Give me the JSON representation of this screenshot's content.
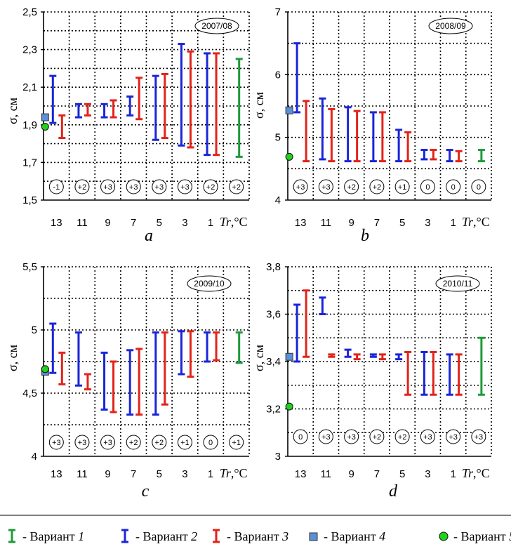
{
  "figure": {
    "x_categories": [
      "13",
      "11",
      "9",
      "7",
      "5",
      "3",
      "1"
    ],
    "x_axis_label_italic": "Tr",
    "x_axis_label_unit": ",°C",
    "y_axis_label": "σ, см"
  },
  "colors": {
    "variant_1": "#1f9a3a",
    "variant_2": "#1a25d8",
    "variant_3": "#e2231a",
    "variant_4": "#5b8fd6",
    "variant_5": "#22d11a",
    "grid": "#000000"
  },
  "chart_data": [
    {
      "type": "range-bar",
      "panel_letter": "a",
      "season": "2007/08",
      "ylim": [
        1.5,
        2.5
      ],
      "y_ticks": [
        "1,5",
        "1,7",
        "1,9",
        "2,1",
        "2,3",
        "2,5"
      ],
      "x_categories": [
        "13",
        "11",
        "9",
        "7",
        "5",
        "3",
        "1"
      ],
      "badges": [
        "-1",
        "+2",
        "+3",
        "+3",
        "+3",
        "+3",
        "+2",
        "+2"
      ],
      "variant_4_point": 1.94,
      "variant_5_point": 1.89,
      "variant_2": [
        [
          1.91,
          2.16
        ],
        [
          1.94,
          2.01
        ],
        [
          1.94,
          2.01
        ],
        [
          1.95,
          2.05
        ],
        [
          1.82,
          2.16
        ],
        [
          1.79,
          2.33
        ],
        [
          1.74,
          2.28
        ]
      ],
      "variant_3": [
        [
          1.83,
          1.95
        ],
        [
          1.95,
          2.01
        ],
        [
          1.94,
          2.03
        ],
        [
          1.93,
          2.15
        ],
        [
          1.83,
          2.17
        ],
        [
          1.78,
          2.29
        ],
        [
          1.74,
          2.28
        ]
      ],
      "variant_1_range": [
        1.73,
        2.25
      ]
    },
    {
      "type": "range-bar",
      "panel_letter": "b",
      "season": "2008/09",
      "ylim": [
        4,
        7
      ],
      "y_ticks": [
        "4",
        "5",
        "6",
        "7"
      ],
      "x_categories": [
        "13",
        "11",
        "9",
        "7",
        "5",
        "3",
        "1"
      ],
      "badges": [
        "+3",
        "+3",
        "+2",
        "+2",
        "+1",
        "0",
        "0",
        "0"
      ],
      "variant_4_point": 5.43,
      "variant_5_point": 4.69,
      "variant_2": [
        [
          5.4,
          6.5
        ],
        [
          4.65,
          5.62
        ],
        [
          4.62,
          5.48
        ],
        [
          4.62,
          5.4
        ],
        [
          4.62,
          5.12
        ],
        [
          4.65,
          4.8
        ],
        [
          4.62,
          4.8
        ]
      ],
      "variant_3": [
        [
          4.62,
          5.58
        ],
        [
          4.62,
          5.45
        ],
        [
          4.62,
          5.42
        ],
        [
          4.62,
          5.4
        ],
        [
          4.62,
          5.08
        ],
        [
          4.65,
          4.8
        ],
        [
          4.62,
          4.78
        ]
      ],
      "variant_1_range": [
        4.62,
        4.8
      ]
    },
    {
      "type": "range-bar",
      "panel_letter": "c",
      "season": "2009/10",
      "ylim": [
        4,
        5.5
      ],
      "y_ticks": [
        "4",
        "4,5",
        "5",
        "5,5"
      ],
      "x_categories": [
        "13",
        "11",
        "9",
        "7",
        "5",
        "3",
        "1"
      ],
      "badges": [
        "+3",
        "+3",
        "+3",
        "+2",
        "+2",
        "+1",
        "0",
        "+1"
      ],
      "variant_4_point": 4.67,
      "variant_5_point": 4.69,
      "variant_2": [
        [
          4.66,
          5.05
        ],
        [
          4.56,
          4.98
        ],
        [
          4.37,
          4.82
        ],
        [
          4.33,
          4.84
        ],
        [
          4.33,
          4.98
        ],
        [
          4.65,
          4.99
        ],
        [
          4.75,
          4.98
        ]
      ],
      "variant_3": [
        [
          4.57,
          4.82
        ],
        [
          4.53,
          4.65
        ],
        [
          4.35,
          4.75
        ],
        [
          4.33,
          4.85
        ],
        [
          4.41,
          4.98
        ],
        [
          4.63,
          4.99
        ],
        [
          4.76,
          4.98
        ]
      ],
      "variant_1_range": [
        4.74,
        4.98
      ]
    },
    {
      "type": "range-bar",
      "panel_letter": "d",
      "season": "2010/11",
      "ylim": [
        3,
        3.8
      ],
      "y_ticks": [
        "3",
        "3,2",
        "3,4",
        "3,6",
        "3,8"
      ],
      "x_categories": [
        "13",
        "11",
        "9",
        "7",
        "5",
        "3",
        "1"
      ],
      "badges": [
        "0",
        "+3",
        "+3",
        "+2",
        "+2",
        "+3",
        "+3",
        "+3"
      ],
      "variant_4_point": 3.42,
      "variant_5_point": 3.21,
      "variant_2": [
        [
          3.4,
          3.64
        ],
        [
          3.6,
          3.67
        ],
        [
          3.42,
          3.45
        ],
        [
          3.42,
          3.43
        ],
        [
          3.41,
          3.43
        ],
        [
          3.26,
          3.44
        ],
        [
          3.26,
          3.43
        ]
      ],
      "variant_3": [
        [
          3.42,
          3.7
        ],
        [
          3.42,
          3.43
        ],
        [
          3.41,
          3.43
        ],
        [
          3.41,
          3.43
        ],
        [
          3.26,
          3.44
        ],
        [
          3.26,
          3.44
        ],
        [
          3.26,
          3.43
        ]
      ],
      "variant_1_range": [
        3.26,
        3.5
      ]
    }
  ],
  "legend": {
    "sep": "- ",
    "word": "Вариант",
    "items": [
      {
        "symbol": "bar",
        "color_key": "variant_1",
        "number": "1"
      },
      {
        "symbol": "bar",
        "color_key": "variant_2",
        "number": "2"
      },
      {
        "symbol": "bar",
        "color_key": "variant_3",
        "number": "3"
      },
      {
        "symbol": "square",
        "color_key": "variant_4",
        "number": "4"
      },
      {
        "symbol": "circle",
        "color_key": "variant_5",
        "number": "5"
      }
    ]
  }
}
